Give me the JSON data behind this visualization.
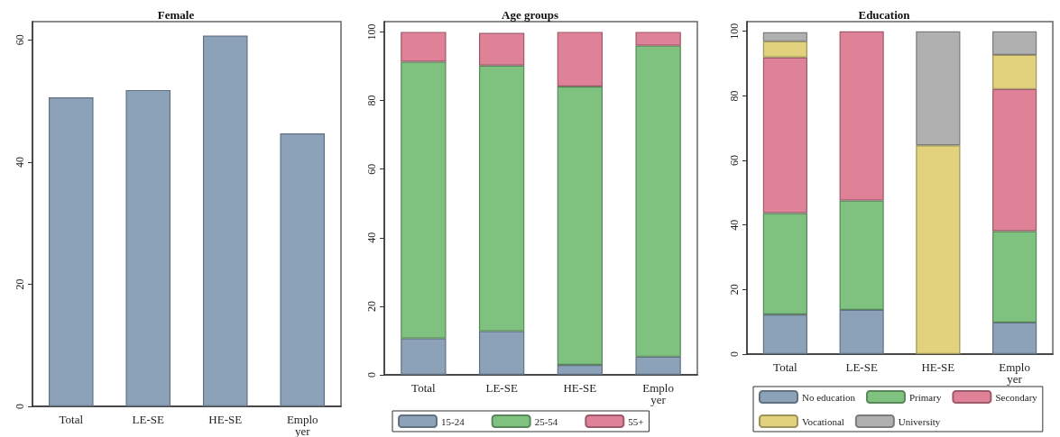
{
  "chart_data": [
    {
      "type": "bar",
      "title": "Female",
      "categories": [
        "Total",
        "LE-SE",
        "HE-SE",
        "Emplo\nyer"
      ],
      "values": [
        50.6,
        51.8,
        60.7,
        44.7
      ],
      "color": "#8ca2b8",
      "ylim": [
        0,
        63
      ],
      "yticks": [
        0,
        20,
        40,
        60
      ],
      "grid": false,
      "legend": false
    },
    {
      "type": "bar",
      "title": "Age groups",
      "categories": [
        "Total",
        "LE-SE",
        "HE-SE",
        "Emplo\nyer"
      ],
      "stacked": true,
      "ylim": [
        0,
        103
      ],
      "yticks": [
        0,
        20,
        40,
        60,
        80,
        100
      ],
      "grid": false,
      "legend": "bottom",
      "series": [
        {
          "name": "15-24",
          "color": "#8ca2b8",
          "values": [
            10.6,
            12.7,
            2.9,
            5.3
          ]
        },
        {
          "name": "25-54",
          "color": "#7fc17f",
          "values": [
            80.7,
            77.5,
            81.2,
            90.7
          ]
        },
        {
          "name": "55+",
          "color": "#df8197",
          "values": [
            8.7,
            9.5,
            15.9,
            4.0
          ]
        }
      ]
    },
    {
      "type": "bar",
      "title": "Education",
      "categories": [
        "Total",
        "LE-SE",
        "HE-SE",
        "Emplo\nyer"
      ],
      "stacked": true,
      "ylim": [
        0,
        103
      ],
      "yticks": [
        0,
        20,
        40,
        60,
        80,
        100
      ],
      "grid": false,
      "legend": "bottom",
      "series": [
        {
          "name": "No education",
          "color": "#8ca2b8",
          "values": [
            12.3,
            13.7,
            0,
            9.8
          ]
        },
        {
          "name": "Primary",
          "color": "#7fc17f",
          "values": [
            31.4,
            33.9,
            0,
            28.3
          ]
        },
        {
          "name": "Secondary",
          "color": "#df8197",
          "values": [
            48.2,
            52.4,
            0,
            44.0
          ]
        },
        {
          "name": "Vocational",
          "color": "#e2d27e",
          "values": [
            5.0,
            0,
            64.7,
            10.6
          ]
        },
        {
          "name": "University",
          "color": "#b0b0b0",
          "values": [
            2.8,
            0,
            35.3,
            7.3
          ]
        }
      ]
    }
  ]
}
